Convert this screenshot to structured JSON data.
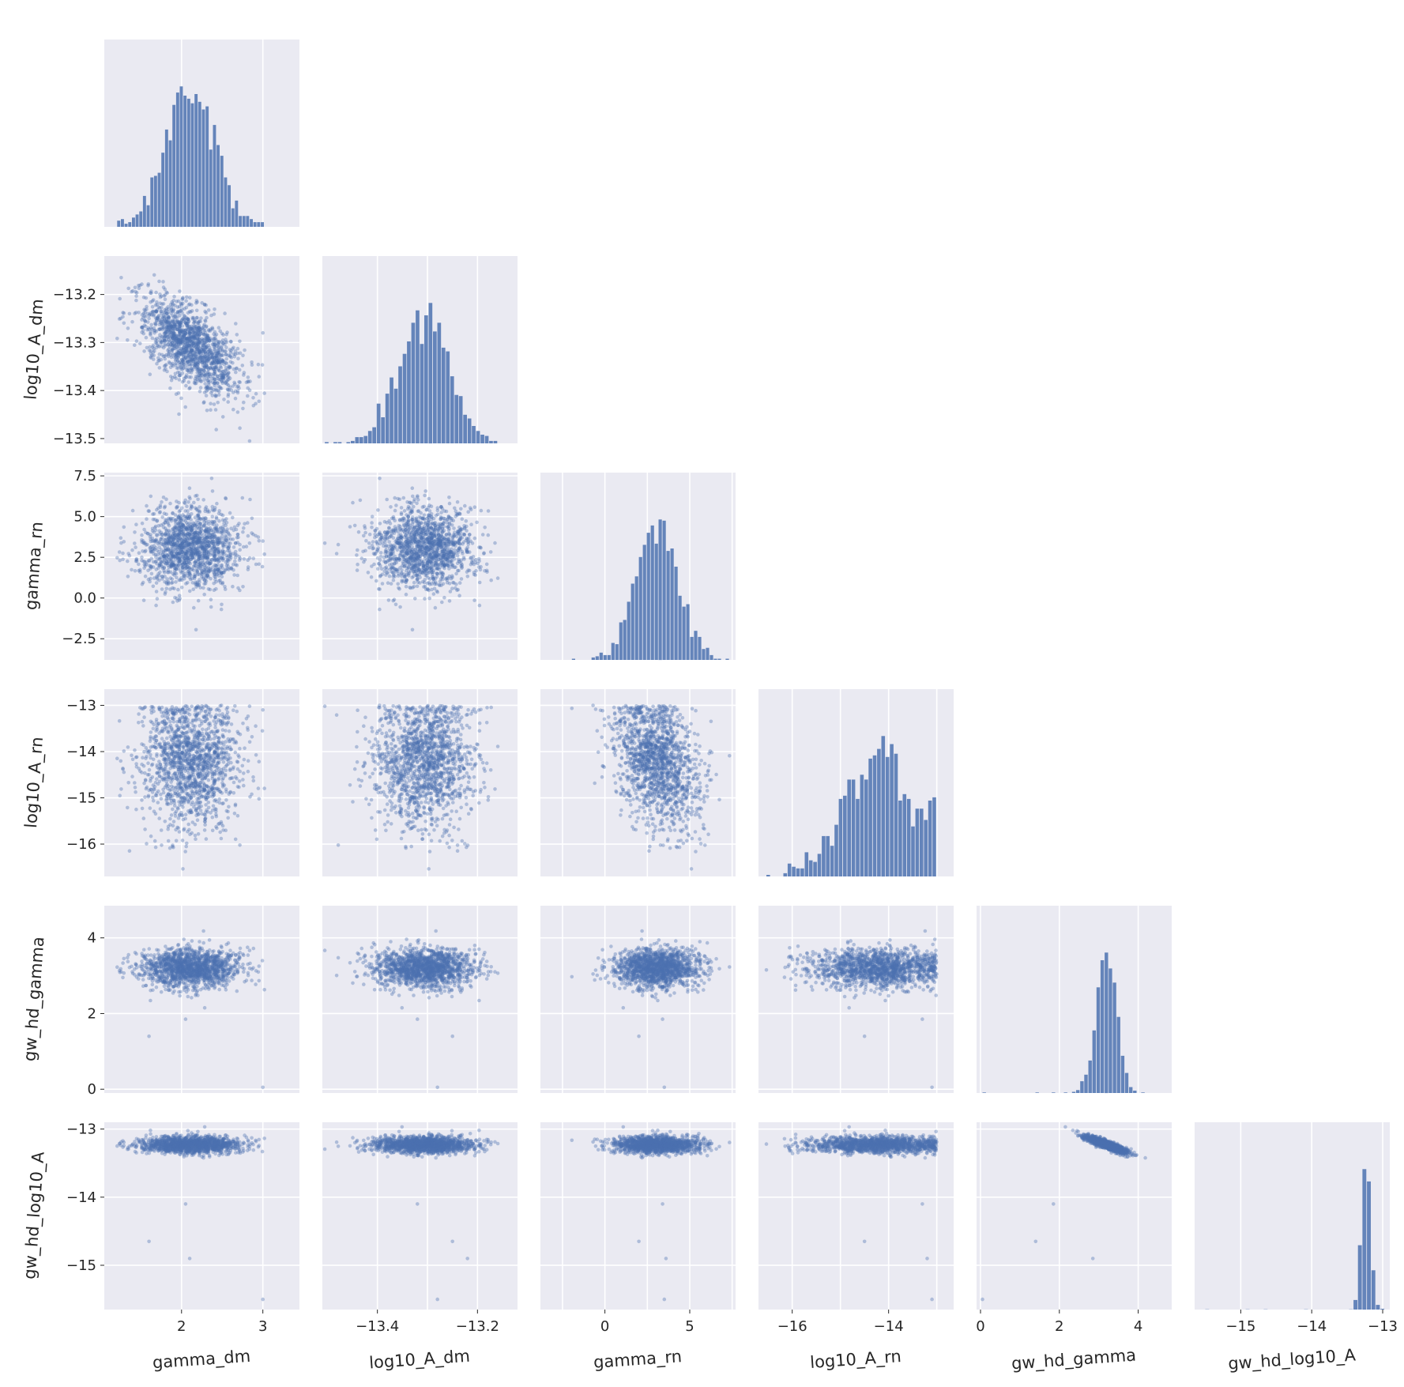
{
  "chart_data": {
    "type": "scatter",
    "layout": "corner-pairplot",
    "grid": true,
    "background_color": "#EAEAF2",
    "mark_color": "#4C72B0",
    "variables": [
      "gamma_dm",
      "log10_A_dm",
      "gamma_rn",
      "log10_A_rn",
      "gw_hd_gamma",
      "gw_hd_log10_A"
    ],
    "x_axis_labels": [
      "gamma_dm",
      "log10_A_dm",
      "gamma_rn",
      "log10_A_rn",
      "gw_hd_gamma",
      "gw_hd_log10_A"
    ],
    "y_axis_labels": [
      "",
      "log10_A_dm",
      "gamma_rn",
      "log10_A_rn",
      "gw_hd_gamma",
      "gw_hd_log10_A"
    ],
    "ranges": {
      "gamma_dm": [
        1.05,
        3.45
      ],
      "log10_A_dm": [
        -13.51,
        -13.12
      ],
      "gamma_rn": [
        -3.8,
        7.7
      ],
      "log10_A_rn": [
        -16.7,
        -12.65
      ],
      "gw_hd_gamma": [
        -0.1,
        4.85
      ],
      "gw_hd_log10_A": [
        -15.65,
        -12.9
      ]
    },
    "ticks": {
      "gamma_dm": [
        2,
        3
      ],
      "log10_A_dm": [
        -13.4,
        -13.3,
        -13.2
      ],
      "gamma_rn": [
        -2.5,
        0,
        2.5,
        5,
        7.5
      ],
      "log10_A_rn": [
        -16,
        -15,
        -14,
        -13
      ],
      "gw_hd_gamma": [
        0,
        2,
        4
      ],
      "gw_hd_log10_A": [
        -15,
        -14,
        -13
      ]
    },
    "x_tick_labels": {
      "gamma_dm": [
        "2",
        "3"
      ],
      "log10_A_dm": [
        "−13.4",
        "−13.2"
      ],
      "gamma_rn": [
        "0",
        "5"
      ],
      "log10_A_rn": [
        "−16",
        "−14"
      ],
      "gw_hd_gamma": [
        "0",
        "2",
        "4"
      ],
      "gw_hd_log10_A": [
        "−15",
        "−14",
        "−13"
      ]
    },
    "y_tick_labels": {
      "log10_A_dm": [
        "−13.5",
        "−13.4",
        "−13.3",
        "−13.2"
      ],
      "gamma_rn": [
        "−2.5",
        "0.0",
        "2.5",
        "5.0",
        "7.5"
      ],
      "log10_A_rn": [
        "−16",
        "−15",
        "−14",
        "−13"
      ],
      "gw_hd_gamma": [
        "0",
        "2",
        "4"
      ],
      "gw_hd_log10_A": [
        "−15",
        "−14",
        "−13"
      ]
    },
    "marginals": {
      "gamma_dm": {
        "mean": 2.12,
        "std": 0.3
      },
      "log10_A_dm": {
        "mean": -13.31,
        "std": 0.05
      },
      "gamma_rn": {
        "mean": 3.1,
        "std": 1.25
      },
      "log10_A_rn": {
        "mean": -14.2,
        "std": 0.7,
        "upper_bound": -13.0
      },
      "gw_hd_gamma": {
        "mean": 3.2,
        "std": 0.25
      },
      "gw_hd_log10_A": {
        "mean": -13.23,
        "std": 0.06
      }
    },
    "correlations": [
      {
        "x": "gamma_dm",
        "y": "log10_A_dm",
        "r": -0.6
      },
      {
        "x": "gamma_rn",
        "y": "log10_A_rn",
        "r": -0.35
      },
      {
        "x": "gw_hd_gamma",
        "y": "gw_hd_log10_A",
        "r": -0.88
      }
    ],
    "samples_per_panel": 1500,
    "histogram_bins": 40,
    "outliers": [
      {
        "gamma_dm": 3.0,
        "log10_A_dm": -13.28,
        "gamma_rn": 3.5,
        "log10_A_rn": -13.1,
        "gw_hd_gamma": 0.05,
        "gw_hd_log10_A": -15.5
      },
      {
        "gamma_dm": 1.6,
        "log10_A_dm": -13.25,
        "gamma_rn": 2.0,
        "log10_A_rn": -14.5,
        "gw_hd_gamma": 1.4,
        "gw_hd_log10_A": -14.65
      },
      {
        "gamma_dm": 2.05,
        "log10_A_dm": -13.32,
        "gamma_rn": 3.4,
        "log10_A_rn": -13.3,
        "gw_hd_gamma": 1.85,
        "gw_hd_log10_A": -14.1
      },
      {
        "gamma_dm": 2.1,
        "log10_A_dm": -13.22,
        "gamma_rn": 3.6,
        "log10_A_rn": -13.2,
        "gw_hd_gamma": 2.85,
        "gw_hd_log10_A": -14.9
      }
    ]
  }
}
